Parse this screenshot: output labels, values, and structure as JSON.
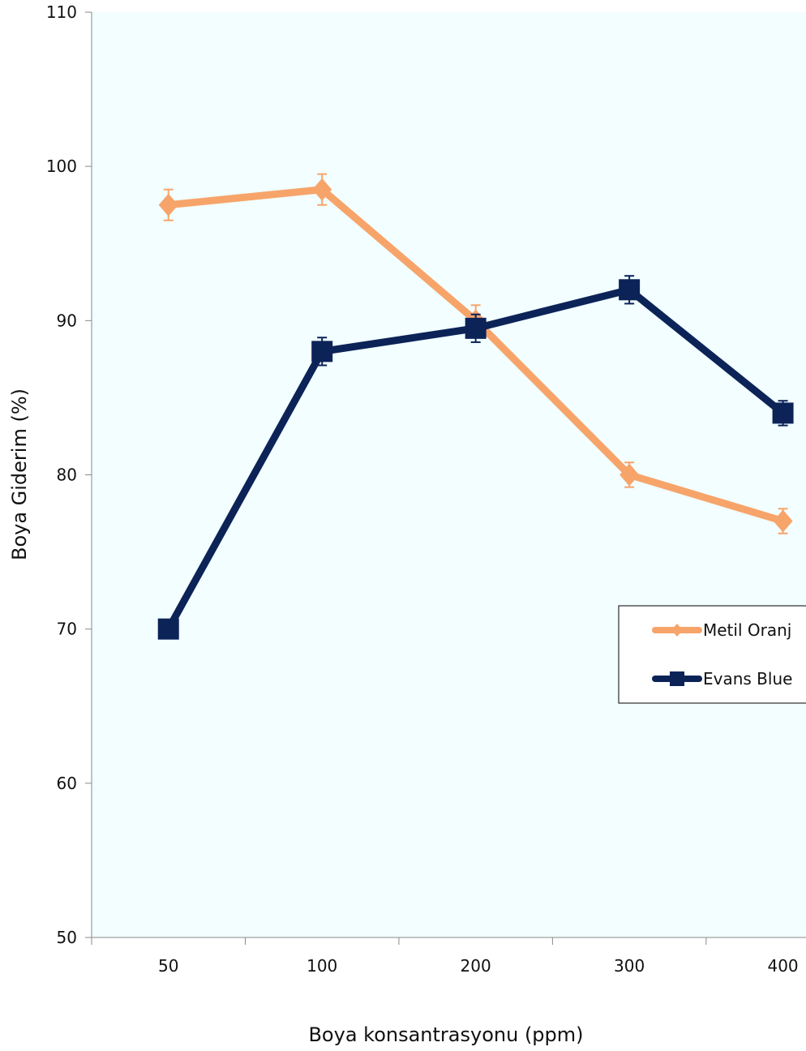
{
  "chart_data": {
    "type": "line",
    "categories": [
      "50",
      "100",
      "200",
      "300",
      "400"
    ],
    "xlabel": "Boya konsantrasyonu (ppm)",
    "ylabel": "Boya Giderim (%)",
    "ylim": [
      50,
      110
    ],
    "yticks": [
      50,
      60,
      70,
      80,
      90,
      100,
      110
    ],
    "grid": false,
    "plot_background": "#f2feff",
    "legend_position": "right",
    "series": [
      {
        "name": "Metil Oranj",
        "values": [
          97.5,
          98.5,
          90.0,
          80.0,
          77.0
        ],
        "errors": [
          1.0,
          1.0,
          1.0,
          0.8,
          0.8
        ],
        "color": "#f7a46a",
        "marker": "diamond"
      },
      {
        "name": "Evans Blue",
        "values": [
          70.0,
          88.0,
          89.5,
          92.0,
          84.0
        ],
        "errors": [
          0.5,
          0.9,
          0.9,
          0.9,
          0.8
        ],
        "color": "#0c2358",
        "marker": "square"
      }
    ]
  }
}
